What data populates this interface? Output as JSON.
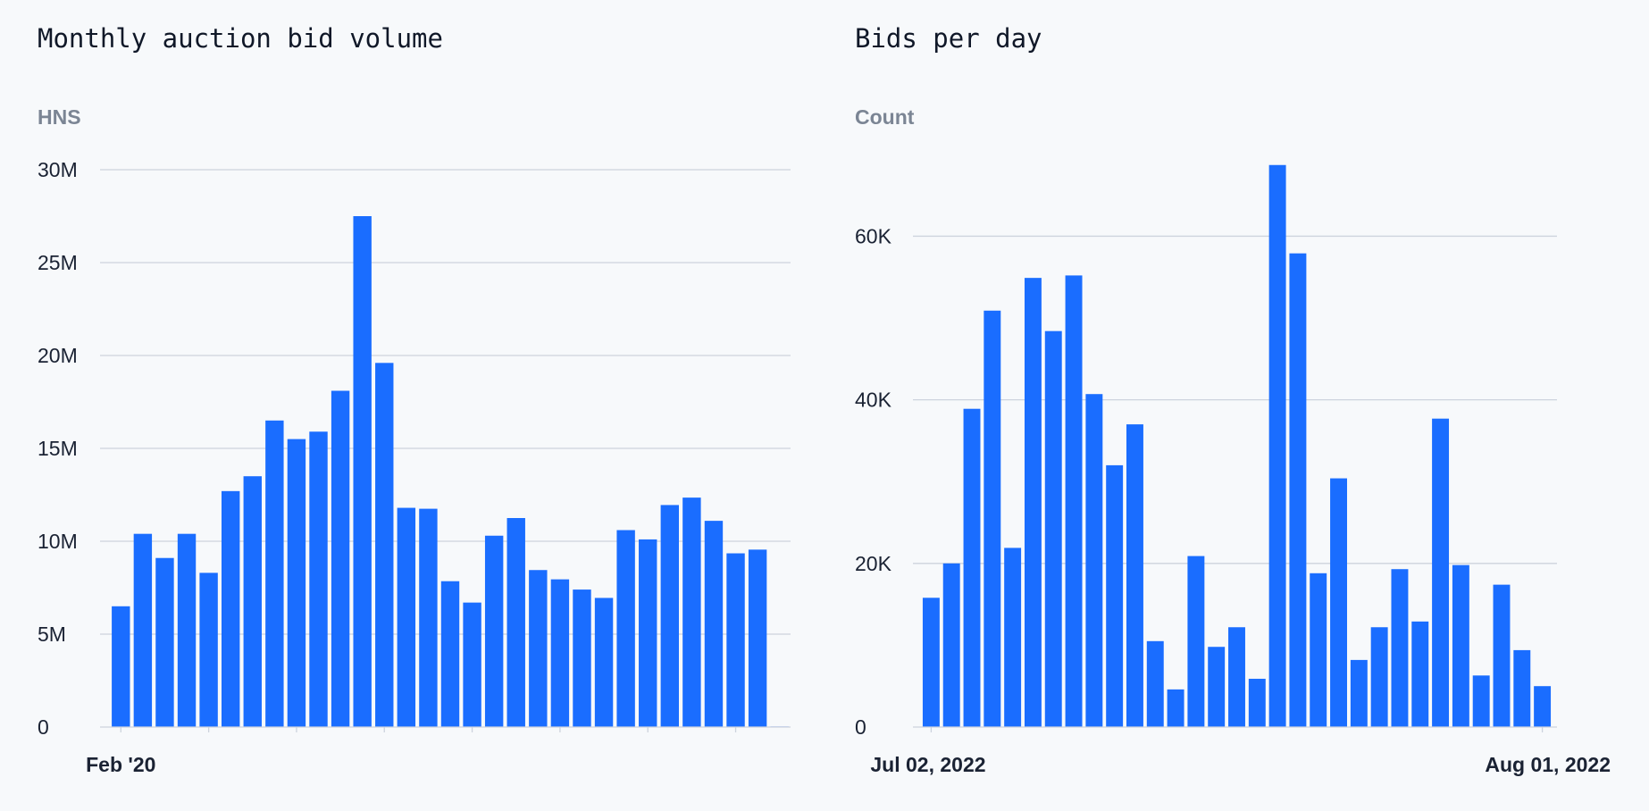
{
  "charts": {
    "left": {
      "title": "Monthly auction bid volume",
      "unit": "HNS",
      "date_label": "Feb '20"
    },
    "right": {
      "title": "Bids per day",
      "unit": "Count",
      "date_start": "Jul 02, 2022",
      "date_end": "Aug 01, 2022"
    }
  },
  "colors": {
    "bar": "#1a6dff",
    "grid": "#cdd3dd",
    "tick": "#1a2233"
  },
  "chart_data": [
    {
      "type": "bar",
      "title": "Monthly auction bid volume",
      "ylabel": "HNS",
      "xlabel": "",
      "ylim": [
        0,
        30000000
      ],
      "y_ticks": [
        0,
        5000000,
        10000000,
        15000000,
        20000000,
        25000000,
        30000000
      ],
      "y_tick_labels": [
        "0",
        "5M",
        "10M",
        "15M",
        "20M",
        "25M",
        "30M"
      ],
      "x_tick_labels": [
        "Feb '20"
      ],
      "grid": true,
      "values": [
        6500000,
        10400000,
        9100000,
        10400000,
        8300000,
        12700000,
        13500000,
        16500000,
        15500000,
        15900000,
        18100000,
        27500000,
        19600000,
        11800000,
        11750000,
        7850000,
        6700000,
        10300000,
        11250000,
        8450000,
        7950000,
        7400000,
        6950000,
        10600000,
        10100000,
        11950000,
        12350000,
        11100000,
        9350000,
        9550000,
        30000
      ]
    },
    {
      "type": "bar",
      "title": "Bids per day",
      "ylabel": "Count",
      "xlabel": "",
      "ylim": [
        0,
        69000
      ],
      "y_ticks": [
        0,
        20000,
        40000,
        60000
      ],
      "y_tick_labels": [
        "0",
        "20K",
        "40K",
        "60K"
      ],
      "x_tick_labels": [
        "Jul 02, 2022",
        "Aug 01, 2022"
      ],
      "grid": true,
      "values": [
        15800,
        20000,
        38900,
        50900,
        21900,
        54900,
        48400,
        55200,
        40700,
        32000,
        37000,
        10500,
        4600,
        20900,
        9800,
        12200,
        5900,
        68700,
        57900,
        18800,
        30400,
        8200,
        12200,
        19300,
        12900,
        37700,
        19800,
        6300,
        17400,
        9400,
        5000
      ]
    }
  ]
}
